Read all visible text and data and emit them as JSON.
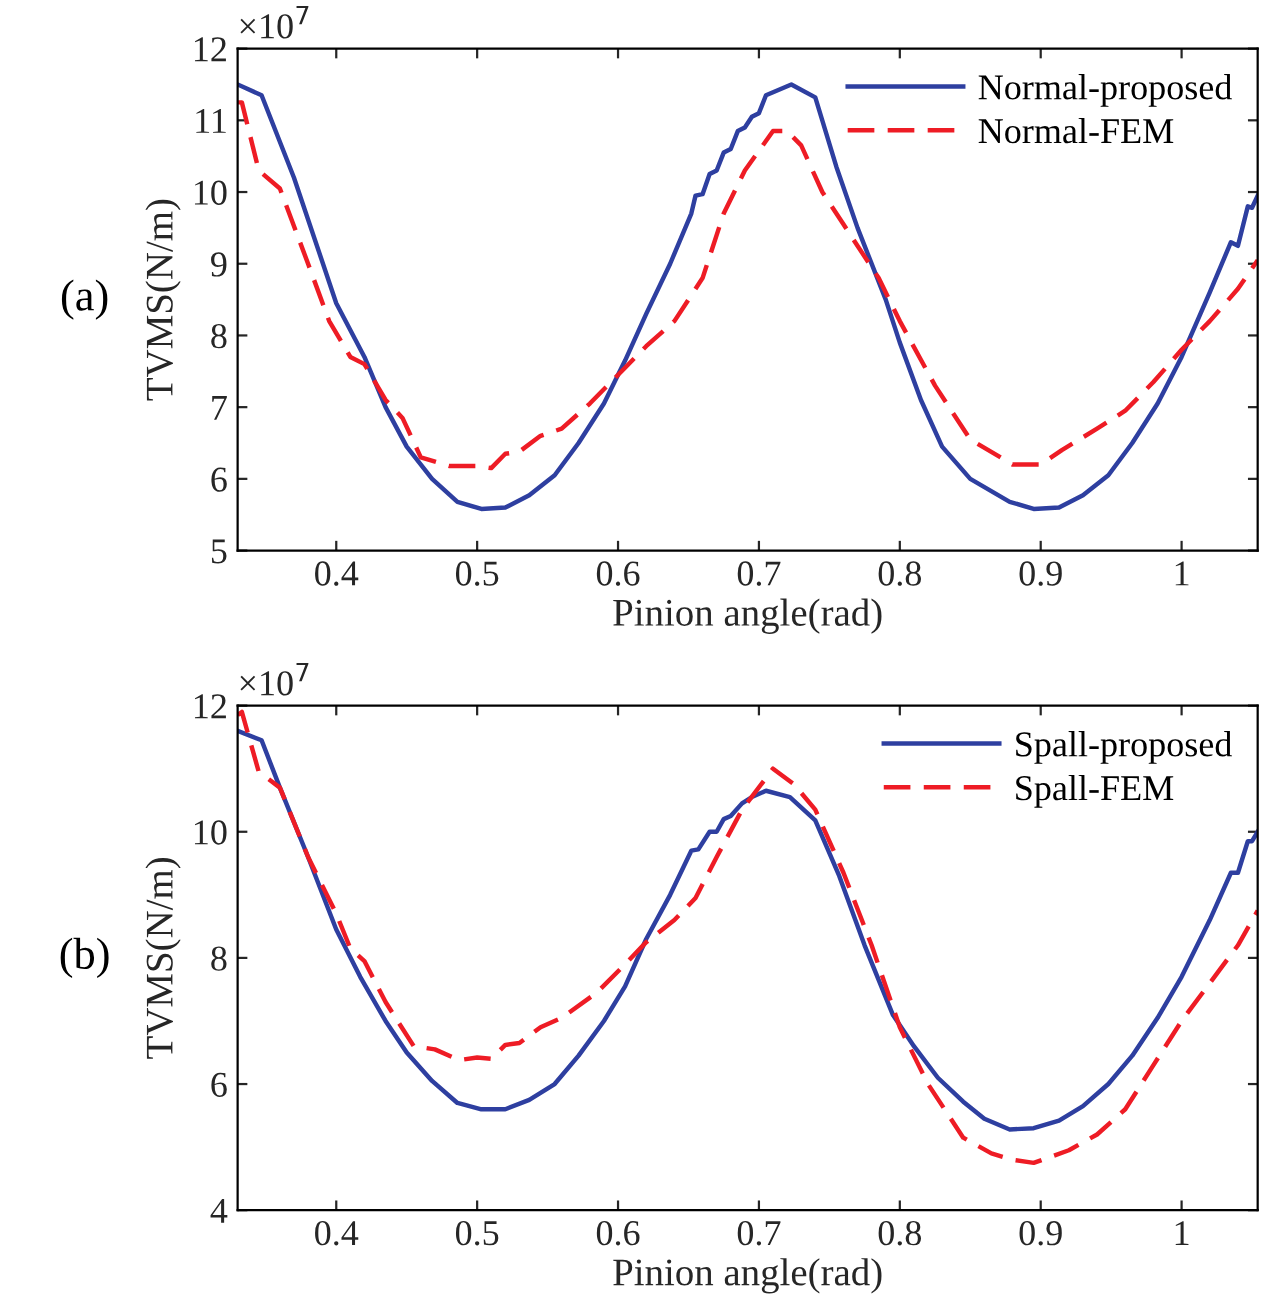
{
  "chart_data": [
    {
      "type": "line",
      "xlabel": "Pinion angle(rad)",
      "ylabel": "TVMS(N/m)",
      "annotations": [
        "(a)",
        "×10$^{7}$"
      ],
      "xlim": [
        0.33,
        1.054
      ],
      "xticks": [
        0.4,
        0.5,
        0.6,
        0.7,
        0.8,
        0.9,
        1
      ],
      "ylim": [
        5,
        12
      ],
      "yticks": [
        5,
        6,
        7,
        8,
        9,
        10,
        11,
        12
      ],
      "legend": "top right",
      "grid": false,
      "series": [
        {
          "name": "Normal-proposed",
          "color": "#2e3fa0",
          "line_style": "solid",
          "x": [
            0.33,
            0.347,
            0.37,
            0.4,
            0.42,
            0.435,
            0.45,
            0.468,
            0.486,
            0.503,
            0.52,
            0.537,
            0.555,
            0.572,
            0.59,
            0.605,
            0.62,
            0.637,
            0.652,
            0.655,
            0.66,
            0.665,
            0.67,
            0.675,
            0.68,
            0.685,
            0.69,
            0.695,
            0.7,
            0.705,
            0.723,
            0.74,
            0.755,
            0.77,
            0.79,
            0.8,
            0.815,
            0.83,
            0.85,
            0.878,
            0.895,
            0.913,
            0.93,
            0.948,
            0.965,
            0.983,
            1.0,
            1.02,
            1.035,
            1.04,
            1.047,
            1.05,
            1.054
          ],
          "values": [
            11.5,
            11.35,
            10.2,
            8.45,
            7.7,
            7.0,
            6.45,
            6.0,
            5.68,
            5.58,
            5.6,
            5.77,
            6.05,
            6.5,
            7.05,
            7.65,
            8.3,
            9.0,
            9.7,
            9.95,
            9.97,
            10.25,
            10.3,
            10.55,
            10.6,
            10.85,
            10.9,
            11.05,
            11.1,
            11.35,
            11.5,
            11.32,
            10.35,
            9.5,
            8.5,
            7.9,
            7.1,
            6.45,
            6.0,
            5.68,
            5.58,
            5.6,
            5.77,
            6.05,
            6.5,
            7.05,
            7.7,
            8.6,
            9.3,
            9.25,
            9.8,
            9.78,
            9.95
          ]
        },
        {
          "name": "Normal-FEM",
          "color": "#ee1c25",
          "line_style": "dashed",
          "x": [
            0.33,
            0.333,
            0.345,
            0.36,
            0.38,
            0.395,
            0.41,
            0.42,
            0.435,
            0.447,
            0.46,
            0.48,
            0.5,
            0.51,
            0.52,
            0.53,
            0.545,
            0.56,
            0.58,
            0.605,
            0.62,
            0.64,
            0.66,
            0.675,
            0.69,
            0.71,
            0.72,
            0.73,
            0.745,
            0.76,
            0.785,
            0.8,
            0.825,
            0.85,
            0.88,
            0.9,
            0.915,
            0.94,
            0.96,
            0.98,
            1.0,
            1.02,
            1.04,
            1.054
          ],
          "values": [
            11.25,
            11.25,
            10.3,
            10.05,
            9.0,
            8.2,
            7.7,
            7.6,
            7.1,
            6.85,
            6.3,
            6.18,
            6.18,
            6.15,
            6.35,
            6.38,
            6.6,
            6.7,
            7.05,
            7.55,
            7.85,
            8.2,
            8.8,
            9.7,
            10.3,
            10.85,
            10.85,
            10.65,
            10.0,
            9.55,
            8.8,
            8.2,
            7.3,
            6.55,
            6.2,
            6.2,
            6.4,
            6.7,
            6.95,
            7.35,
            7.8,
            8.2,
            8.65,
            9.05
          ]
        }
      ]
    },
    {
      "type": "line",
      "xlabel": "Pinion angle(rad)",
      "ylabel": "TVMS(N/m)",
      "annotations": [
        "(b)",
        "×10$^{7}$"
      ],
      "xlim": [
        0.33,
        1.054
      ],
      "xticks": [
        0.4,
        0.5,
        0.6,
        0.7,
        0.8,
        0.9,
        1
      ],
      "ylim": [
        4,
        12
      ],
      "yticks": [
        4,
        6,
        8,
        10,
        12
      ],
      "legend": "top right",
      "grid": false,
      "series": [
        {
          "name": "Spall-proposed",
          "color": "#2e3fa0",
          "line_style": "solid",
          "x": [
            0.33,
            0.347,
            0.36,
            0.38,
            0.4,
            0.417,
            0.435,
            0.45,
            0.468,
            0.486,
            0.503,
            0.52,
            0.537,
            0.555,
            0.572,
            0.59,
            0.605,
            0.62,
            0.637,
            0.652,
            0.657,
            0.665,
            0.67,
            0.675,
            0.68,
            0.688,
            0.695,
            0.705,
            0.722,
            0.74,
            0.757,
            0.775,
            0.795,
            0.81,
            0.827,
            0.845,
            0.86,
            0.878,
            0.895,
            0.913,
            0.93,
            0.948,
            0.965,
            0.983,
            1.0,
            1.02,
            1.035,
            1.04,
            1.047,
            1.05,
            1.054
          ],
          "values": [
            11.6,
            11.45,
            10.7,
            9.6,
            8.45,
            7.7,
            7.0,
            6.5,
            6.05,
            5.7,
            5.6,
            5.6,
            5.75,
            6.0,
            6.45,
            7.0,
            7.55,
            8.3,
            9.0,
            9.7,
            9.72,
            10.0,
            10.0,
            10.2,
            10.25,
            10.45,
            10.55,
            10.65,
            10.55,
            10.18,
            9.3,
            8.2,
            7.1,
            6.6,
            6.1,
            5.72,
            5.45,
            5.28,
            5.3,
            5.42,
            5.65,
            6.0,
            6.45,
            7.05,
            7.7,
            8.6,
            9.35,
            9.35,
            9.85,
            9.85,
            10.0
          ]
        },
        {
          "name": "Spall-FEM",
          "color": "#ee1c25",
          "line_style": "dashed",
          "x": [
            0.33,
            0.333,
            0.345,
            0.36,
            0.38,
            0.4,
            0.41,
            0.42,
            0.435,
            0.455,
            0.47,
            0.487,
            0.5,
            0.51,
            0.52,
            0.53,
            0.545,
            0.56,
            0.585,
            0.605,
            0.62,
            0.64,
            0.655,
            0.67,
            0.688,
            0.71,
            0.725,
            0.74,
            0.76,
            0.78,
            0.8,
            0.82,
            0.845,
            0.865,
            0.88,
            0.895,
            0.92,
            0.94,
            0.96,
            0.98,
            1.0,
            1.02,
            1.04,
            1.054
          ],
          "values": [
            11.85,
            11.9,
            10.95,
            10.7,
            9.6,
            8.7,
            8.15,
            7.95,
            7.3,
            6.6,
            6.55,
            6.38,
            6.42,
            6.4,
            6.62,
            6.65,
            6.9,
            7.05,
            7.45,
            7.9,
            8.25,
            8.6,
            8.95,
            9.6,
            10.35,
            11.0,
            10.75,
            10.35,
            9.35,
            8.2,
            6.9,
            6.0,
            5.15,
            4.9,
            4.8,
            4.75,
            4.95,
            5.2,
            5.6,
            6.3,
            7.0,
            7.6,
            8.2,
            8.75
          ]
        }
      ]
    }
  ]
}
